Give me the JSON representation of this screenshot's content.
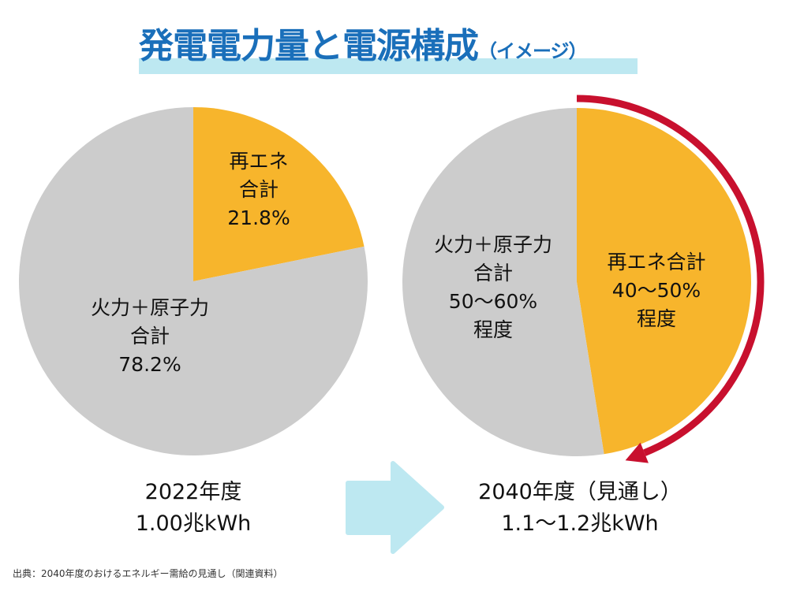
{
  "title": {
    "main": "発電電力量と電源構成",
    "sub": "（イメージ）"
  },
  "colors": {
    "renewable": "#f7b52c",
    "thermal_nuclear": "#cccccc",
    "title": "#1a6fba",
    "title_band": "#bde8f1",
    "growth_arrow": "#c8102e",
    "transition_arrow": "#bde8f1"
  },
  "chart_data": [
    {
      "type": "pie",
      "title": "2022年度",
      "total": "1.00兆kWh",
      "start_angle": "12 o'clock, clockwise",
      "slices": [
        {
          "name": "再エネ合計",
          "value": 21.8,
          "label_lines": [
            "再エネ",
            "合計",
            "21.8%"
          ],
          "color": "#f7b52c"
        },
        {
          "name": "火力＋原子力合計",
          "value": 78.2,
          "label_lines": [
            "火力＋原子力",
            "合計",
            "78.2%"
          ],
          "color": "#cccccc"
        }
      ]
    },
    {
      "type": "pie",
      "title": "2040年度（見通し）",
      "total": "1.1〜1.2兆kWh",
      "start_angle": "12 o'clock, clockwise",
      "slices": [
        {
          "name": "再エネ合計",
          "value": 47.5,
          "range": [
            40,
            50
          ],
          "label_lines": [
            "再エネ合計",
            "40〜50%",
            "程度"
          ],
          "color": "#f7b52c"
        },
        {
          "name": "火力＋原子力合計",
          "value": 52.5,
          "range": [
            50,
            60
          ],
          "label_lines": [
            "火力＋原子力",
            "合計",
            "50〜60%",
            "程度"
          ],
          "color": "#cccccc"
        }
      ]
    }
  ],
  "bottom": {
    "left": {
      "year": "2022年度",
      "amount": "1.00兆kWh"
    },
    "right": {
      "year": "2040年度（見通し）",
      "amount": "1.1〜1.2兆kWh"
    }
  },
  "source": "出典：2040年度のおけるエネルギー需給の見通し（関連資料）"
}
